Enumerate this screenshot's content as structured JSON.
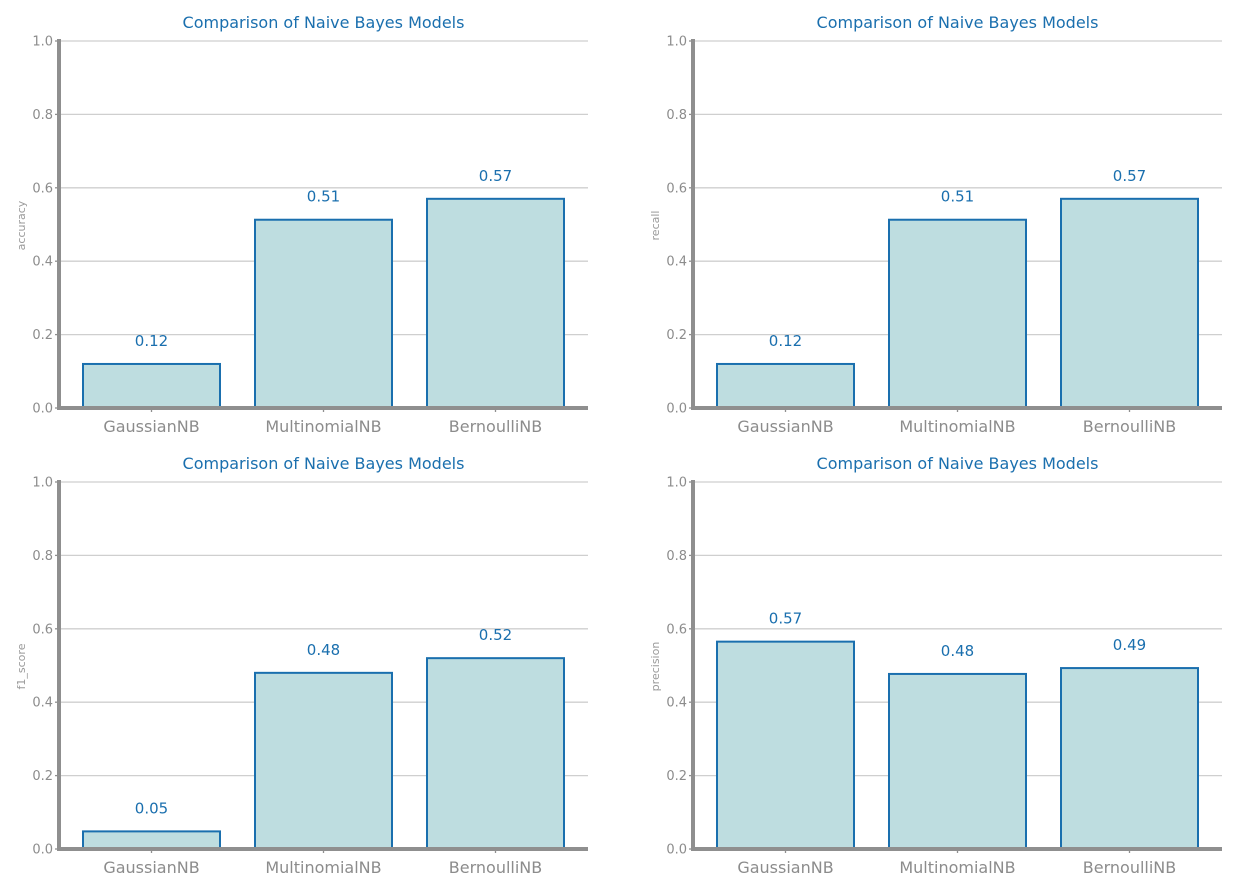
{
  "colors": {
    "bar_fill": "#bedde0",
    "bar_edge": "#1a6fae",
    "title": "#1a6fae",
    "data_label": "#1a6fae",
    "axis": "#8f8f8f",
    "grid": "#cfcfcf",
    "tick_label": "#8c8c8c"
  },
  "chart_data": [
    {
      "type": "bar",
      "title": "Comparison of Naive Bayes Models",
      "xlabel": "",
      "ylabel": "accuracy",
      "categories": [
        "GaussianNB",
        "MultinomialNB",
        "BernoulliNB"
      ],
      "values": [
        0.12,
        0.513,
        0.57
      ],
      "value_labels": [
        "0.12",
        "0.51",
        "0.57"
      ],
      "ylim": [
        0,
        1.0
      ],
      "yticks": [
        "0.0",
        "0.2",
        "0.4",
        "0.6",
        "0.8",
        "1.0"
      ],
      "grid": "horizontal"
    },
    {
      "type": "bar",
      "title": "Comparison of Naive Bayes Models",
      "xlabel": "",
      "ylabel": "recall",
      "categories": [
        "GaussianNB",
        "MultinomialNB",
        "BernoulliNB"
      ],
      "values": [
        0.12,
        0.513,
        0.57
      ],
      "value_labels": [
        "0.12",
        "0.51",
        "0.57"
      ],
      "ylim": [
        0,
        1.0
      ],
      "yticks": [
        "0.0",
        "0.2",
        "0.4",
        "0.6",
        "0.8",
        "1.0"
      ],
      "grid": "horizontal"
    },
    {
      "type": "bar",
      "title": "Comparison of Naive Bayes Models",
      "xlabel": "",
      "ylabel": "f1_score",
      "categories": [
        "GaussianNB",
        "MultinomialNB",
        "BernoulliNB"
      ],
      "values": [
        0.048,
        0.48,
        0.52
      ],
      "value_labels": [
        "0.05",
        "0.48",
        "0.52"
      ],
      "ylim": [
        0,
        1.0
      ],
      "yticks": [
        "0.0",
        "0.2",
        "0.4",
        "0.6",
        "0.8",
        "1.0"
      ],
      "grid": "horizontal"
    },
    {
      "type": "bar",
      "title": "Comparison of Naive Bayes Models",
      "xlabel": "",
      "ylabel": "precision",
      "categories": [
        "GaussianNB",
        "MultinomialNB",
        "BernoulliNB"
      ],
      "values": [
        0.565,
        0.477,
        0.493
      ],
      "value_labels": [
        "0.57",
        "0.48",
        "0.49"
      ],
      "ylim": [
        0,
        1.0
      ],
      "yticks": [
        "0.0",
        "0.2",
        "0.4",
        "0.6",
        "0.8",
        "1.0"
      ],
      "grid": "horizontal"
    }
  ]
}
